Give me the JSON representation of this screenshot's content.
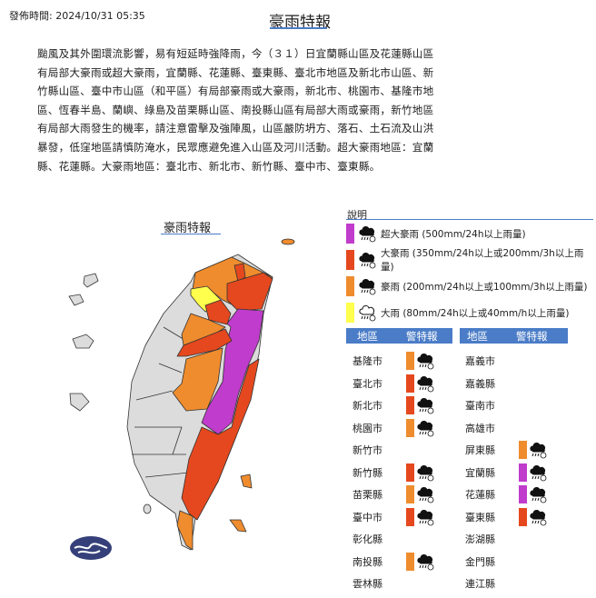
{
  "header": {
    "publish_time": "發佈時間: 2024/10/31 05:35",
    "title": "豪雨特報"
  },
  "description": "颱風及其外圍環流影響，易有短延時強降雨，今（３１）日宜蘭縣山區及花蓮縣山區有局部大豪雨或超大豪雨，宜蘭縣、花蓮縣、臺東縣、臺北市地區及新北市山區、新竹縣山區、臺中市山區（和平區）有局部豪雨或大豪雨，新北市、桃園市、基隆市地區、恆春半島、蘭嶼、綠島及苗栗縣山區、南投縣山區有局部大雨或豪雨，新竹地區有局部大雨發生的機率，請注意雷擊及強陣風，山區嚴防坍方、落石、土石流及山洪暴發，低窪地區請慎防淹水，民眾應避免進入山區及河川活動。超大豪雨地區：宜蘭縣、花蓮縣。大豪雨地區：臺北市、新北市、新竹縣、臺中市、臺東縣。",
  "map": {
    "title": "豪雨特報"
  },
  "legend": {
    "title": "說明",
    "items": [
      {
        "level": "extreme",
        "color": "#c03ccc",
        "icon": "heavy-rain-cloud-icon",
        "label": "超大豪雨 (500mm/24h以上雨量)"
      },
      {
        "level": "torrential",
        "color": "#e5481e",
        "icon": "heavy-rain-cloud-icon",
        "label": "大豪雨 (350mm/24h以上或200mm/3h以上雨量)"
      },
      {
        "level": "extremely-heavy",
        "color": "#ef8c2d",
        "icon": "heavy-rain-cloud-icon",
        "label": "豪雨 (200mm/24h以上或100mm/3h以上雨量)"
      },
      {
        "level": "heavy",
        "color": "#ffff4d",
        "icon": "rain-cloud-outline-icon",
        "label": "大雨 (80mm/24h以上或40mm/h以上雨量)"
      }
    ]
  },
  "table": {
    "headers": {
      "region": "地區",
      "warning": "警特報"
    },
    "left": [
      {
        "region": "基隆市",
        "level": "extremely-heavy"
      },
      {
        "region": "臺北市",
        "level": "torrential"
      },
      {
        "region": "新北市",
        "level": "torrential"
      },
      {
        "region": "桃園市",
        "level": "extremely-heavy"
      },
      {
        "region": "新竹市",
        "level": ""
      },
      {
        "region": "新竹縣",
        "level": "torrential"
      },
      {
        "region": "苗栗縣",
        "level": "extremely-heavy"
      },
      {
        "region": "臺中市",
        "level": "torrential"
      },
      {
        "region": "彰化縣",
        "level": ""
      },
      {
        "region": "南投縣",
        "level": "extremely-heavy"
      },
      {
        "region": "雲林縣",
        "level": ""
      }
    ],
    "right": [
      {
        "region": "嘉義市",
        "level": ""
      },
      {
        "region": "嘉義縣",
        "level": ""
      },
      {
        "region": "臺南市",
        "level": ""
      },
      {
        "region": "高雄市",
        "level": ""
      },
      {
        "region": "屏東縣",
        "level": "extremely-heavy"
      },
      {
        "region": "宜蘭縣",
        "level": "extreme"
      },
      {
        "region": "花蓮縣",
        "level": "extreme"
      },
      {
        "region": "臺東縣",
        "level": "torrential"
      },
      {
        "region": "澎湖縣",
        "level": ""
      },
      {
        "region": "金門縣",
        "level": ""
      },
      {
        "region": "連江縣",
        "level": ""
      }
    ]
  },
  "colors": {
    "extreme": "#c03ccc",
    "torrential": "#e5481e",
    "extremely-heavy": "#ef8c2d",
    "heavy": "#ffff4d",
    "none": "#dcdcdc",
    "accent": "#4a7cc7",
    "logo": "#35407a"
  }
}
